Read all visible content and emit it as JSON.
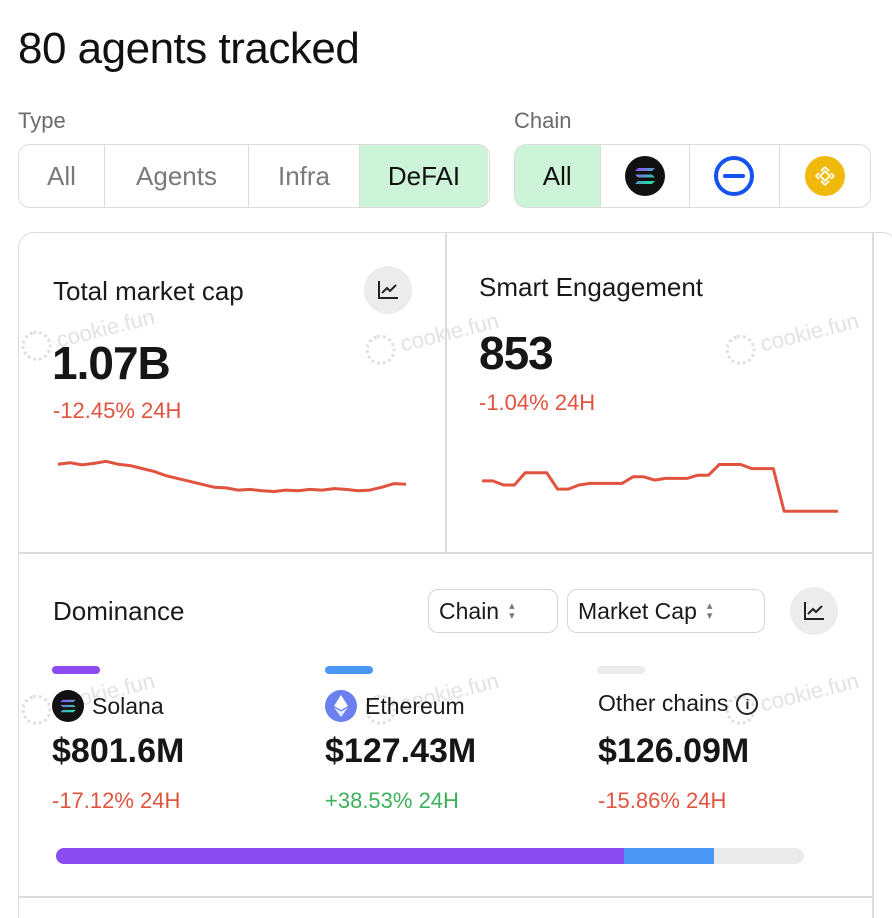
{
  "title": "80 agents tracked",
  "type_filter": {
    "label": "Type",
    "options": [
      "All",
      "Agents",
      "Infra",
      "DeFAI"
    ],
    "selected": "DeFAI"
  },
  "chain_filter": {
    "label": "Chain",
    "options": [
      {
        "label": "All",
        "icon": null
      },
      {
        "label": "",
        "icon": "solana-icon"
      },
      {
        "label": "",
        "icon": "base-icon"
      },
      {
        "label": "",
        "icon": "bnb-icon"
      }
    ],
    "selected": "All"
  },
  "watermark": "cookie.fun",
  "market_cap": {
    "title": "Total market cap",
    "value": "1.07B",
    "change": "-12.45% 24H",
    "sparkline": [
      0.72,
      0.74,
      0.71,
      0.73,
      0.76,
      0.72,
      0.7,
      0.66,
      0.62,
      0.56,
      0.52,
      0.48,
      0.44,
      0.4,
      0.39,
      0.36,
      0.37,
      0.35,
      0.34,
      0.36,
      0.35,
      0.37,
      0.36,
      0.38,
      0.37,
      0.35,
      0.36,
      0.4,
      0.45,
      0.44
    ]
  },
  "smart_engagement": {
    "title": "Smart Engagement",
    "value": "853",
    "change": "-1.04% 24H",
    "sparkline": [
      0.55,
      0.55,
      0.5,
      0.5,
      0.65,
      0.65,
      0.65,
      0.45,
      0.45,
      0.5,
      0.52,
      0.52,
      0.52,
      0.52,
      0.6,
      0.6,
      0.56,
      0.58,
      0.58,
      0.58,
      0.62,
      0.62,
      0.75,
      0.75,
      0.75,
      0.7,
      0.7,
      0.7,
      0.18,
      0.18,
      0.18,
      0.18,
      0.18,
      0.18
    ]
  },
  "dominance": {
    "title": "Dominance",
    "selects": [
      "Chain",
      "Market Cap"
    ],
    "items": [
      {
        "name": "Solana",
        "value": "$801.6M",
        "change": "-17.12% 24H",
        "direction": "neg",
        "color": "#8a4cf0",
        "icon": "solana-icon",
        "share": 0.76
      },
      {
        "name": "Ethereum",
        "value": "$127.43M",
        "change": "+38.53% 24H",
        "direction": "pos",
        "color": "#4a97f5",
        "icon": "ethereum-icon",
        "share": 0.12
      },
      {
        "name": "Other chains",
        "value": "$126.09M",
        "change": "-15.86% 24H",
        "direction": "neg",
        "color": "#ebebeb",
        "icon": "info-icon",
        "share": 0.12
      }
    ]
  },
  "colors": {
    "accent_green": "#cdf3d8",
    "negative": "#e0533f",
    "positive": "#3cb05a",
    "sparkline": "#e0533f"
  }
}
